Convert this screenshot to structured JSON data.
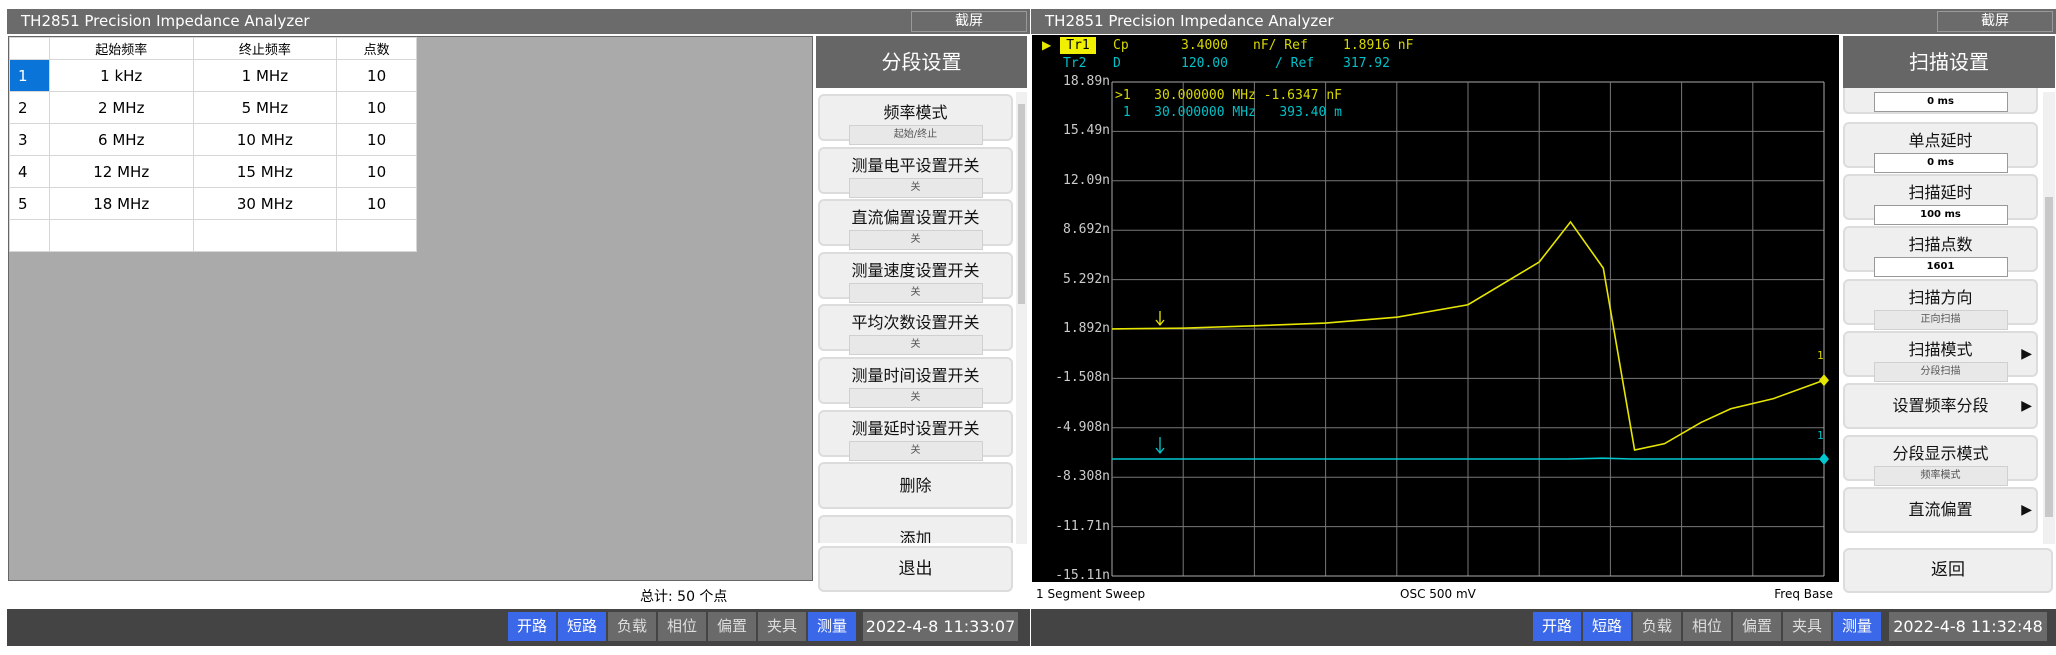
{
  "left": {
    "title": "TH2851 Precision Impedance Analyzer",
    "screenshot_label": "截屏",
    "table": {
      "headers": [
        "",
        "起始频率",
        "终止频率",
        "点数"
      ],
      "rows": [
        {
          "idx": "1",
          "start": "1 kHz",
          "stop": "1 MHz",
          "points": "10",
          "selected": true
        },
        {
          "idx": "2",
          "start": "2 MHz",
          "stop": "5 MHz",
          "points": "10"
        },
        {
          "idx": "3",
          "start": "6 MHz",
          "stop": "10 MHz",
          "points": "10"
        },
        {
          "idx": "4",
          "start": "12 MHz",
          "stop": "15 MHz",
          "points": "10"
        },
        {
          "idx": "5",
          "start": "18 MHz",
          "stop": "30 MHz",
          "points": "10"
        },
        {
          "idx": "",
          "start": "",
          "stop": "",
          "points": ""
        }
      ]
    },
    "total": "总计:  50  个点",
    "side": {
      "title": "分段设置",
      "items": [
        {
          "label": "频率模式",
          "value": "起始/终止"
        },
        {
          "label": "测量电平设置开关",
          "value": "关"
        },
        {
          "label": "直流偏置设置开关",
          "value": "关"
        },
        {
          "label": "测量速度设置开关",
          "value": "关"
        },
        {
          "label": "平均次数设置开关",
          "value": "关"
        },
        {
          "label": "测量时间设置开关",
          "value": "关"
        },
        {
          "label": "测量延时设置开关",
          "value": "关"
        },
        {
          "label": "删除"
        },
        {
          "label": "添加"
        }
      ],
      "exit": "退出"
    },
    "status": {
      "buttons": [
        {
          "label": "开路",
          "active": true
        },
        {
          "label": "短路",
          "active": true
        },
        {
          "label": "负载",
          "active": false
        },
        {
          "label": "相位",
          "active": false
        },
        {
          "label": "偏置",
          "active": false
        },
        {
          "label": "夹具",
          "active": false
        },
        {
          "label": "测量",
          "active": true
        }
      ],
      "datetime": "2022-4-8 11:33:07"
    }
  },
  "right": {
    "title": "TH2851 Precision Impedance Analyzer",
    "screenshot_label": "截屏",
    "trace_header": {
      "tr1": {
        "name": "Tr1",
        "param": "Cp",
        "scale": "3.4000",
        "unit": "nF/ Ref",
        "ref": "1.8916 nF"
      },
      "tr2": {
        "name": "Tr2",
        "param": "D",
        "scale": "120.00",
        "unit": "/ Ref",
        "ref": "317.92"
      }
    },
    "markers": {
      "m1": ">1   30.000000 MHz -1.6347 nF",
      "m2": " 1   30.000000 MHz   393.40 m",
      "label1": "1",
      "label2": "1"
    },
    "footer": {
      "left": "1  Segment Sweep",
      "center": "OSC 500 mV",
      "right": "Freq Base"
    },
    "side": {
      "title": "扫描设置",
      "top_value": "0 ms",
      "items": [
        {
          "label": "单点延时",
          "value": "0 ms",
          "input": true
        },
        {
          "label": "扫描延时",
          "value": "100 ms",
          "input": true
        },
        {
          "label": "扫描点数",
          "value": "1601",
          "input": true
        },
        {
          "label": "扫描方向",
          "value": "正向扫描"
        },
        {
          "label": "扫描模式",
          "value": "分段扫描",
          "submenu": true
        },
        {
          "label": "设置频率分段",
          "submenu": true
        },
        {
          "label": "分段显示模式",
          "value": "频率模式"
        },
        {
          "label": "直流偏置",
          "submenu": true
        }
      ],
      "back": "返回"
    },
    "status": {
      "buttons": [
        {
          "label": "开路",
          "active": true
        },
        {
          "label": "短路",
          "active": true
        },
        {
          "label": "负载",
          "active": false
        },
        {
          "label": "相位",
          "active": false
        },
        {
          "label": "偏置",
          "active": false
        },
        {
          "label": "夹具",
          "active": false
        },
        {
          "label": "测量",
          "active": true
        }
      ],
      "datetime": "2022-4-8 11:32:48"
    }
  },
  "chart_data": {
    "type": "line",
    "yticks": [
      "18.89n",
      "15.49n",
      "12.09n",
      "8.692n",
      "5.292n",
      "1.892n",
      "-1.508n",
      "-4.908n",
      "-8.308n",
      "-11.71n",
      "-15.11n"
    ],
    "ylim": [
      -15.11,
      18.89
    ],
    "xlim": [
      0,
      10
    ],
    "grid": true,
    "colors": {
      "tr1": "#e6e600",
      "tr2": "#00c8d0"
    },
    "series": [
      {
        "name": "Tr1",
        "unit": "nF",
        "x": [
          0,
          1,
          1.94,
          3,
          4,
          5,
          6,
          6.44,
          6.9,
          7.34,
          7.76,
          8.27,
          8.69,
          9.29,
          10
        ],
        "values": [
          1.892,
          1.95,
          2.1,
          2.3,
          2.7,
          3.56,
          6.5,
          9.26,
          6.08,
          -6.44,
          -6.0,
          -4.55,
          -3.6,
          -2.9,
          -1.6347
        ]
      },
      {
        "name": "Tr2",
        "x": [
          0,
          6.4,
          6.9,
          7.3,
          10
        ],
        "values": [
          0.3934,
          0.3934,
          0.396,
          0.3934,
          0.3934
        ]
      }
    ]
  }
}
